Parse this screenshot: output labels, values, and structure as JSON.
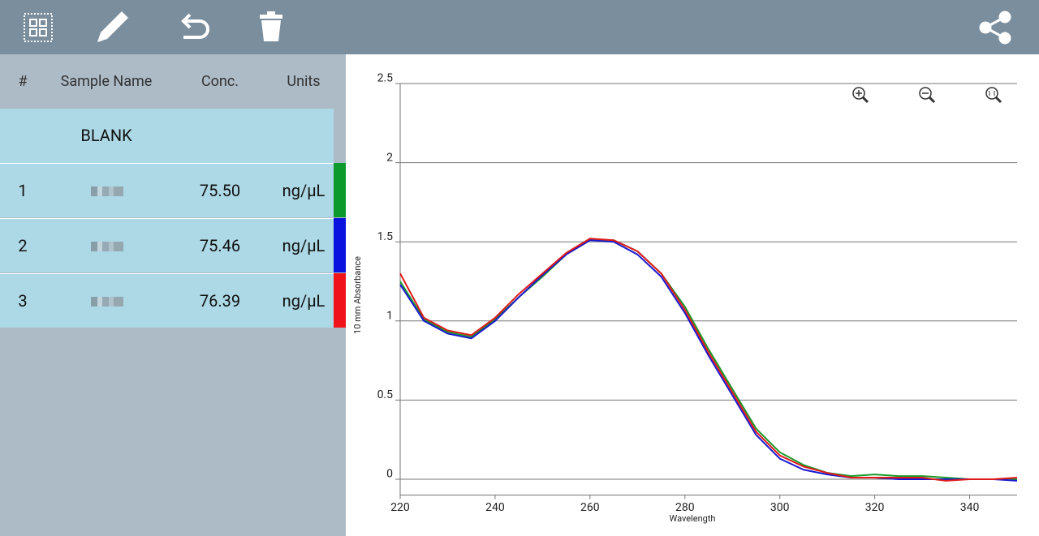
{
  "table": {
    "header": [
      "#",
      "Sample Name",
      "Conc.",
      "Units"
    ],
    "rows": [
      {
        "cells": [
          "BLANK"
        ]
      },
      {
        "cells": [
          "1",
          "75.50",
          "ng/µL"
        ],
        "color": "#0c9a2c"
      },
      {
        "cells": [
          "2",
          "75.46",
          "ng/µL"
        ],
        "color": "#0a12e0"
      },
      {
        "cells": [
          "3",
          "76.39",
          "ng/µL"
        ],
        "color": "#f0141a"
      }
    ]
  },
  "chart_data": {
    "type": "line",
    "x_label": "Wavelength",
    "y_label": "10 mm Absorbance",
    "x": [
      220,
      225,
      230,
      235,
      240,
      245,
      250,
      255,
      260,
      265,
      270,
      275,
      280,
      285,
      290,
      295,
      300,
      305,
      310,
      315,
      320,
      325,
      330,
      335,
      340,
      345,
      350
    ],
    "series": [
      {
        "color": "#1a9a2a",
        "values": [
          1.25,
          1.01,
          0.93,
          0.9,
          1.01,
          1.15,
          1.28,
          1.42,
          1.51,
          1.51,
          1.44,
          1.3,
          1.09,
          0.82,
          0.57,
          0.32,
          0.17,
          0.09,
          0.04,
          0.02,
          0.03,
          0.02,
          0.02,
          0.01,
          0.0,
          0.0,
          0.0
        ]
      },
      {
        "color": "#1a1ad0",
        "values": [
          1.23,
          1.0,
          0.92,
          0.89,
          1.0,
          1.15,
          1.29,
          1.42,
          1.51,
          1.5,
          1.42,
          1.28,
          1.05,
          0.78,
          0.53,
          0.28,
          0.13,
          0.06,
          0.03,
          0.01,
          0.01,
          0.0,
          0.0,
          0.0,
          0.0,
          0.0,
          -0.01
        ]
      },
      {
        "color": "#e01a1a",
        "values": [
          1.3,
          1.02,
          0.94,
          0.91,
          1.02,
          1.17,
          1.3,
          1.43,
          1.52,
          1.51,
          1.44,
          1.3,
          1.07,
          0.8,
          0.55,
          0.3,
          0.15,
          0.08,
          0.04,
          0.01,
          0.01,
          0.01,
          0.01,
          -0.01,
          0.0,
          0.0,
          0.01
        ]
      }
    ],
    "xlim": [
      220,
      350
    ],
    "ylim": [
      -0.1,
      2.5
    ],
    "xticks": [
      220,
      240,
      260,
      280,
      300,
      320,
      340
    ],
    "yticks": [
      0,
      0.5,
      1,
      1.5,
      2,
      2.5
    ],
    "grid": true
  }
}
